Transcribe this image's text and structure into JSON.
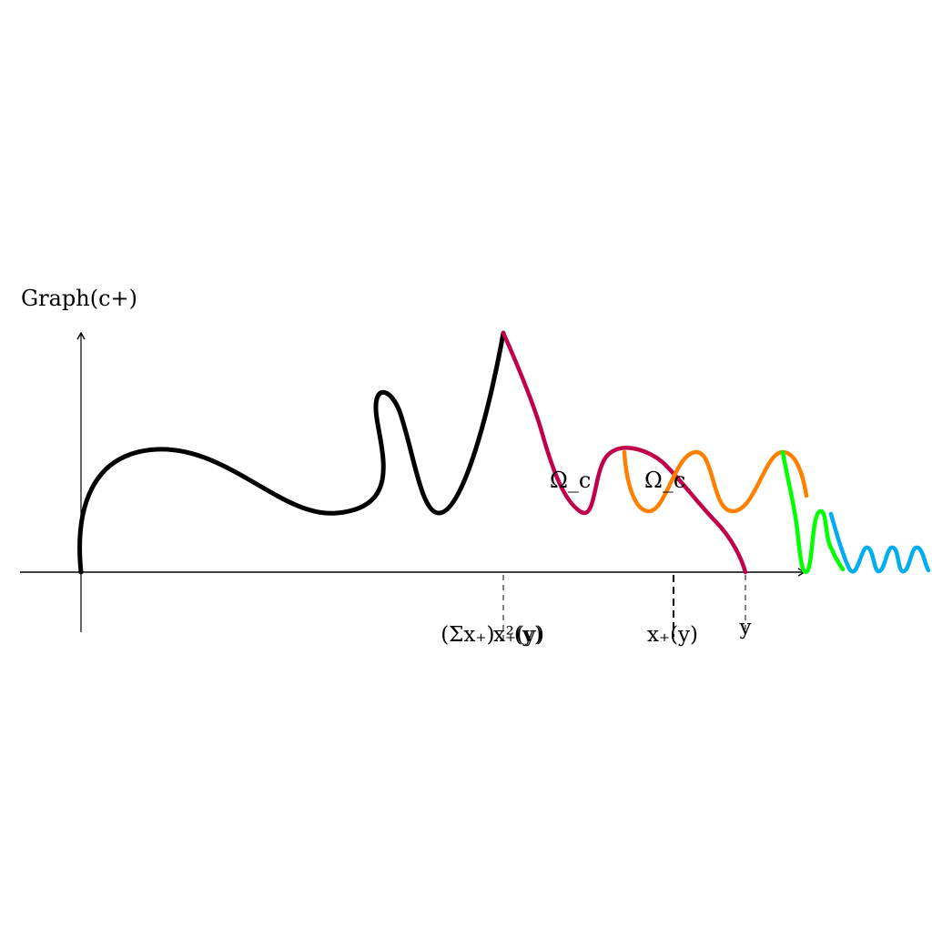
{
  "figure": {
    "y_axis_label": "Graph(c+)",
    "region_labels": [
      "Ω_c",
      "Ω_c"
    ],
    "x_markers": [
      {
        "label_lines": [
          "(Σx₊)⁻²(y)",
          "x₊(y)"
        ]
      },
      {
        "label_lines": [
          "x₊(y)"
        ]
      },
      {
        "label_lines": [
          "y"
        ]
      }
    ],
    "curve_colors": {
      "main": "#000000",
      "crimson": "#c0004a",
      "orange": "#ff8000",
      "green": "#00ff00",
      "blue": "#00aeef"
    }
  }
}
